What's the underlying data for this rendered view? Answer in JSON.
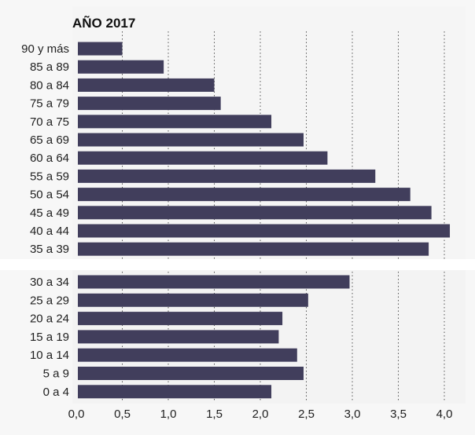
{
  "chart_data": {
    "type": "bar",
    "orientation": "horizontal",
    "title": "AÑO 2017",
    "xlabel": "",
    "ylabel": "",
    "xlim": [
      0,
      4.0
    ],
    "xticks": [
      "0,0",
      "0,5",
      "1,0",
      "1,5",
      "2,0",
      "2,5",
      "3,0",
      "3,5",
      "4,0"
    ],
    "grid": "vertical dotted",
    "bar_color": "#413e5c",
    "panels": [
      {
        "categories": [
          "90 y más",
          "85 a 89",
          "80 a 84",
          "75 a 79",
          "70 a 75",
          "65 a 69",
          "60 a 64",
          "55 a 59",
          "50 a 54",
          "45 a 49",
          "40 a 44",
          "35 a 39"
        ],
        "values": [
          0.5,
          0.95,
          1.5,
          1.57,
          2.12,
          2.47,
          2.73,
          3.25,
          3.63,
          3.86,
          4.06,
          3.83
        ]
      },
      {
        "categories": [
          "30 a 34",
          "25 a 29",
          "20 a 24",
          "15 a 19",
          "10 a 14",
          "5 a 9",
          "0 a 4"
        ],
        "values": [
          2.97,
          2.52,
          2.24,
          2.2,
          2.4,
          2.47,
          2.12
        ]
      }
    ]
  }
}
